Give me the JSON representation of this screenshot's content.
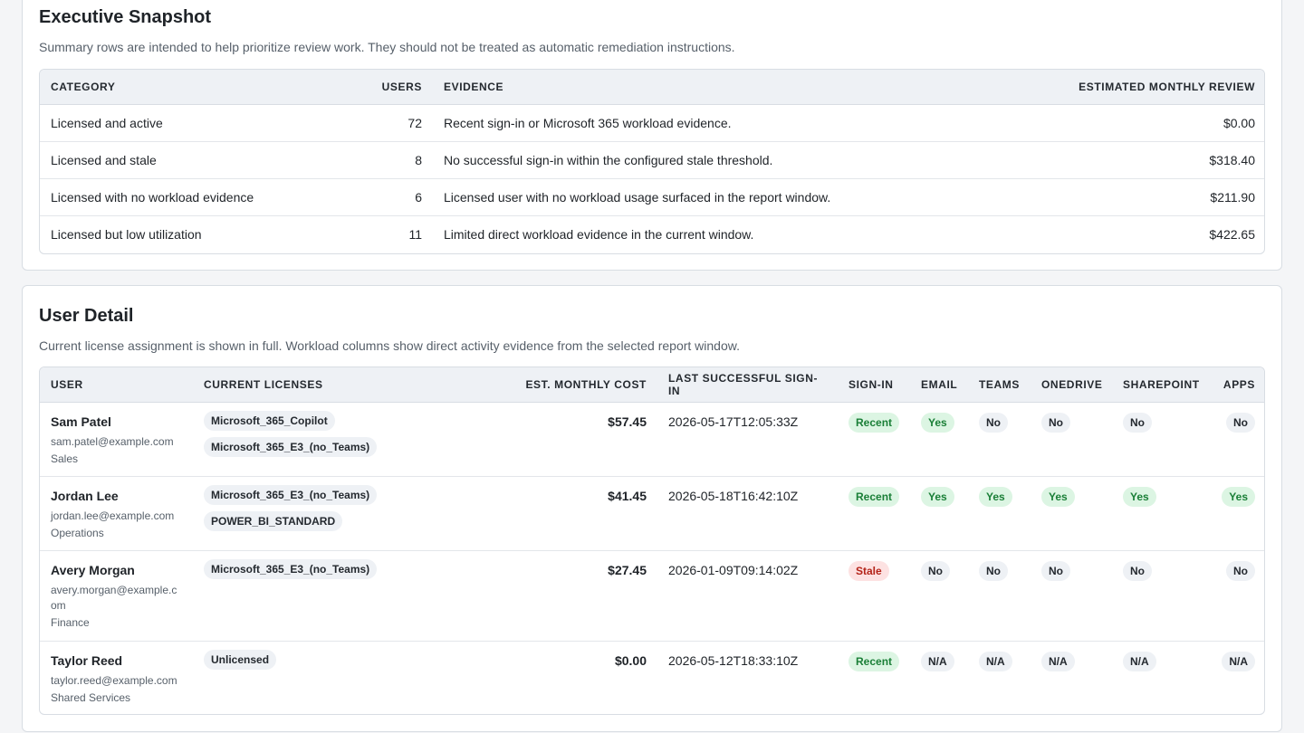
{
  "snapshot": {
    "title": "Executive Snapshot",
    "subtitle": "Summary rows are intended to help prioritize review work. They should not be treated as automatic remediation instructions.",
    "headers": {
      "category": "Category",
      "users": "Users",
      "evidence": "Evidence",
      "review": "Estimated Monthly Review"
    },
    "rows": [
      {
        "category": "Licensed and active",
        "users": "72",
        "evidence": "Recent sign-in or Microsoft 365 workload evidence.",
        "review": "$0.00"
      },
      {
        "category": "Licensed and stale",
        "users": "8",
        "evidence": "No successful sign-in within the configured stale threshold.",
        "review": "$318.40"
      },
      {
        "category": "Licensed with no workload evidence",
        "users": "6",
        "evidence": "Licensed user with no workload usage surfaced in the report window.",
        "review": "$211.90"
      },
      {
        "category": "Licensed but low utilization",
        "users": "11",
        "evidence": "Limited direct workload evidence in the current window.",
        "review": "$422.65"
      }
    ]
  },
  "detail": {
    "title": "User Detail",
    "subtitle": "Current license assignment is shown in full. Workload columns show direct activity evidence from the selected report window.",
    "headers": {
      "user": "User",
      "licenses": "Current Licenses",
      "cost": "Est. Monthly Cost",
      "last_signin": "Last Successful Sign-In",
      "signin": "Sign-In",
      "email": "Email",
      "teams": "Teams",
      "onedrive": "OneDrive",
      "sharepoint": "SharePoint",
      "apps": "Apps"
    },
    "rows": [
      {
        "name": "Sam Patel",
        "email": "sam.patel@example.com",
        "dept": "Sales",
        "licenses": [
          "Microsoft_365_Copilot",
          "Microsoft_365_E3_(no_Teams)"
        ],
        "cost": "$57.45",
        "last_signin": "2026-05-17T12:05:33Z",
        "signin": "Recent",
        "w_email": "Yes",
        "w_teams": "No",
        "w_onedrive": "No",
        "w_sharepoint": "No",
        "w_apps": "No"
      },
      {
        "name": "Jordan Lee",
        "email": "jordan.lee@example.com",
        "dept": "Operations",
        "licenses": [
          "Microsoft_365_E3_(no_Teams)",
          "POWER_BI_STANDARD"
        ],
        "cost": "$41.45",
        "last_signin": "2026-05-18T16:42:10Z",
        "signin": "Recent",
        "w_email": "Yes",
        "w_teams": "Yes",
        "w_onedrive": "Yes",
        "w_sharepoint": "Yes",
        "w_apps": "Yes"
      },
      {
        "name": "Avery Morgan",
        "email": "avery.morgan@example.com",
        "dept": "Finance",
        "licenses": [
          "Microsoft_365_E3_(no_Teams)"
        ],
        "cost": "$27.45",
        "last_signin": "2026-01-09T09:14:02Z",
        "signin": "Stale",
        "w_email": "No",
        "w_teams": "No",
        "w_onedrive": "No",
        "w_sharepoint": "No",
        "w_apps": "No"
      },
      {
        "name": "Taylor Reed",
        "email": "taylor.reed@example.com",
        "dept": "Shared Services",
        "licenses": [
          "Unlicensed"
        ],
        "cost": "$0.00",
        "last_signin": "2026-05-12T18:33:10Z",
        "signin": "Recent",
        "w_email": "N/A",
        "w_teams": "N/A",
        "w_onedrive": "N/A",
        "w_sharepoint": "N/A",
        "w_apps": "N/A"
      }
    ]
  },
  "colors": {
    "good_bg": "#dcf5e3",
    "good_fg": "#1a7f37",
    "bad_bg": "#fde2e2",
    "bad_fg": "#b42318",
    "neutral_bg": "#eef1f5"
  }
}
